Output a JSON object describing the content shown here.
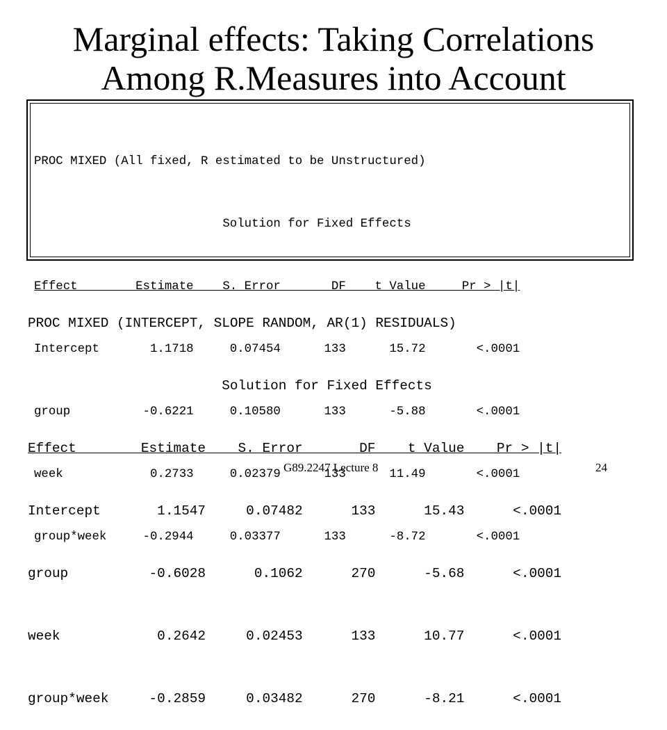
{
  "title": {
    "line1": "Marginal effects: Taking Correlations",
    "line2": "Among R.Measures into Account"
  },
  "output1": {
    "proc": "PROC MIXED (All fixed, R estimated to be Unstructured)",
    "subtitle": "                          Solution for Fixed Effects",
    "header": "Effect        Estimate    S. Error       DF    t Value     Pr > |t|",
    "rows": [
      "Intercept       1.1718     0.07454      133      15.72       <.0001",
      "group          -0.6221     0.10580      133      -5.88       <.0001",
      "week            0.2733     0.02379      133      11.49       <.0001",
      "group*week     -0.2944     0.03377      133      -8.72       <.0001"
    ]
  },
  "output2": {
    "proc": "PROC MIXED (INTERCEPT, SLOPE RANDOM, AR(1) RESIDUALS)",
    "subtitle": "                        Solution for Fixed Effects",
    "header": "Effect        Estimate    S. Error       DF    t Value    Pr > |t|",
    "rows": [
      "Intercept       1.1547     0.07482      133      15.43      <.0001",
      "group          -0.6028      0.1062      270      -5.68      <.0001",
      "week            0.2642     0.02453      133      10.77      <.0001",
      "group*week     -0.2859     0.03482      270      -8.21      <.0001"
    ]
  },
  "footer": {
    "left": "G89.2247 Lecture 8",
    "right": "24"
  }
}
